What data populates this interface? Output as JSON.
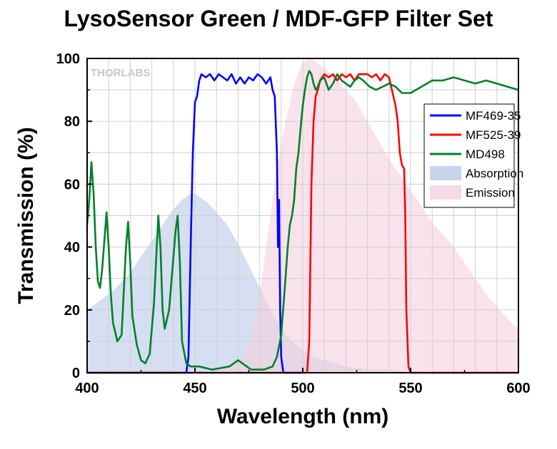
{
  "chart_data": {
    "type": "line",
    "title": "LysoSensor Green / MDF-GFP Filter Set",
    "xlabel": "Wavelength (nm)",
    "ylabel": "Transmission (%)",
    "xlim": [
      400,
      600
    ],
    "ylim": [
      0,
      100
    ],
    "x_ticks": [
      "400",
      "450",
      "500",
      "550",
      "600"
    ],
    "y_ticks": [
      "0",
      "20",
      "40",
      "60",
      "80",
      "100"
    ],
    "grid": true,
    "legend_position": "top-right",
    "watermark": "THORLABS",
    "series": [
      {
        "name": "MF469-35",
        "kind": "line",
        "color": "#0000ff",
        "points": [
          [
            400,
            0
          ],
          [
            440,
            0
          ],
          [
            446,
            0
          ],
          [
            447,
            5
          ],
          [
            448,
            40
          ],
          [
            449,
            70
          ],
          [
            450,
            86
          ],
          [
            451,
            88
          ],
          [
            452,
            93
          ],
          [
            453,
            95
          ],
          [
            455,
            94
          ],
          [
            457,
            95
          ],
          [
            459,
            93
          ],
          [
            461,
            95
          ],
          [
            463,
            94
          ],
          [
            465,
            93
          ],
          [
            467,
            95
          ],
          [
            469,
            92
          ],
          [
            471,
            94
          ],
          [
            473,
            92
          ],
          [
            475,
            94
          ],
          [
            477,
            93
          ],
          [
            479,
            95
          ],
          [
            481,
            94
          ],
          [
            483,
            92
          ],
          [
            485,
            94
          ],
          [
            486,
            90
          ],
          [
            487,
            88
          ],
          [
            488,
            70
          ],
          [
            488.5,
            40
          ],
          [
            489,
            55
          ],
          [
            489.5,
            20
          ],
          [
            490,
            5
          ],
          [
            491,
            0
          ],
          [
            500,
            0
          ]
        ]
      },
      {
        "name": "MF525-39",
        "kind": "line",
        "color": "#ff0000",
        "points": [
          [
            400,
            0
          ],
          [
            500,
            0
          ],
          [
            502,
            0
          ],
          [
            503,
            10
          ],
          [
            504,
            60
          ],
          [
            505,
            80
          ],
          [
            506,
            88
          ],
          [
            507,
            90
          ],
          [
            508,
            93
          ],
          [
            510,
            95
          ],
          [
            512,
            94
          ],
          [
            514,
            95
          ],
          [
            516,
            93
          ],
          [
            518,
            95
          ],
          [
            520,
            94
          ],
          [
            522,
            95
          ],
          [
            524,
            93
          ],
          [
            526,
            95
          ],
          [
            528,
            95
          ],
          [
            530,
            95
          ],
          [
            532,
            94
          ],
          [
            534,
            95
          ],
          [
            536,
            93
          ],
          [
            538,
            95
          ],
          [
            540,
            94
          ],
          [
            541,
            91
          ],
          [
            542,
            88
          ],
          [
            543,
            85
          ],
          [
            544,
            80
          ],
          [
            545,
            70
          ],
          [
            546,
            66
          ],
          [
            547,
            65
          ],
          [
            547.5,
            50
          ],
          [
            548,
            20
          ],
          [
            549,
            2
          ],
          [
            550,
            0
          ],
          [
            600,
            0
          ]
        ]
      },
      {
        "name": "MD498",
        "kind": "line",
        "color": "#00802b",
        "points": [
          [
            400,
            47
          ],
          [
            401,
            55
          ],
          [
            402,
            67
          ],
          [
            403,
            57
          ],
          [
            404,
            40
          ],
          [
            405,
            29
          ],
          [
            406,
            27
          ],
          [
            407,
            33
          ],
          [
            409,
            51
          ],
          [
            410,
            40
          ],
          [
            411,
            25
          ],
          [
            412,
            16
          ],
          [
            414,
            10
          ],
          [
            416,
            12
          ],
          [
            418,
            40
          ],
          [
            419,
            48
          ],
          [
            420,
            35
          ],
          [
            421,
            18
          ],
          [
            423,
            9
          ],
          [
            425,
            4
          ],
          [
            427,
            3
          ],
          [
            429,
            6
          ],
          [
            431,
            22
          ],
          [
            433,
            50
          ],
          [
            434,
            40
          ],
          [
            435,
            20
          ],
          [
            436,
            14
          ],
          [
            438,
            20
          ],
          [
            441,
            45
          ],
          [
            442,
            50
          ],
          [
            443,
            35
          ],
          [
            444,
            10
          ],
          [
            446,
            3
          ],
          [
            448,
            2
          ],
          [
            452,
            2
          ],
          [
            458,
            1
          ],
          [
            466,
            2
          ],
          [
            468,
            3
          ],
          [
            470,
            4
          ],
          [
            472,
            3
          ],
          [
            476,
            1
          ],
          [
            482,
            1
          ],
          [
            486,
            2
          ],
          [
            488,
            5
          ],
          [
            490,
            12
          ],
          [
            492,
            30
          ],
          [
            493,
            40
          ],
          [
            494,
            47
          ],
          [
            495,
            50
          ],
          [
            496,
            55
          ],
          [
            497,
            65
          ],
          [
            498,
            70
          ],
          [
            499,
            78
          ],
          [
            500,
            85
          ],
          [
            501,
            90
          ],
          [
            502,
            94
          ],
          [
            503,
            96
          ],
          [
            504,
            95
          ],
          [
            505,
            92
          ],
          [
            506,
            90
          ],
          [
            507,
            91
          ],
          [
            508,
            93
          ],
          [
            510,
            94
          ],
          [
            512,
            90
          ],
          [
            514,
            92
          ],
          [
            516,
            95
          ],
          [
            518,
            93
          ],
          [
            520,
            92
          ],
          [
            522,
            91
          ],
          [
            524,
            93
          ],
          [
            526,
            94
          ],
          [
            528,
            93
          ],
          [
            531,
            91
          ],
          [
            534,
            90
          ],
          [
            537,
            91
          ],
          [
            540,
            92
          ],
          [
            543,
            91
          ],
          [
            546,
            89
          ],
          [
            550,
            89
          ],
          [
            555,
            91
          ],
          [
            560,
            93
          ],
          [
            565,
            93
          ],
          [
            570,
            94
          ],
          [
            575,
            93
          ],
          [
            580,
            92
          ],
          [
            585,
            93
          ],
          [
            590,
            92
          ],
          [
            595,
            91
          ],
          [
            600,
            90
          ]
        ]
      },
      {
        "name": "Absorption",
        "kind": "area",
        "color": "#b9c9e8",
        "points": [
          [
            400,
            20
          ],
          [
            404,
            22
          ],
          [
            408,
            24
          ],
          [
            412,
            26
          ],
          [
            416,
            29
          ],
          [
            420,
            32
          ],
          [
            424,
            36
          ],
          [
            428,
            40
          ],
          [
            432,
            44
          ],
          [
            436,
            48
          ],
          [
            440,
            52
          ],
          [
            444,
            55
          ],
          [
            448,
            57
          ],
          [
            450,
            57
          ],
          [
            452,
            56
          ],
          [
            456,
            54
          ],
          [
            460,
            51
          ],
          [
            465,
            47
          ],
          [
            470,
            41
          ],
          [
            475,
            34
          ],
          [
            480,
            27
          ],
          [
            485,
            20
          ],
          [
            490,
            14
          ],
          [
            495,
            10
          ],
          [
            500,
            7
          ],
          [
            505,
            5
          ],
          [
            510,
            4
          ],
          [
            515,
            3
          ],
          [
            520,
            2
          ],
          [
            530,
            1
          ],
          [
            540,
            1
          ],
          [
            550,
            0.5
          ],
          [
            560,
            0.2
          ],
          [
            570,
            0
          ],
          [
            600,
            0
          ]
        ]
      },
      {
        "name": "Emission",
        "kind": "area",
        "color": "#f3d0e0",
        "points": [
          [
            460,
            0
          ],
          [
            470,
            3
          ],
          [
            476,
            10
          ],
          [
            480,
            25
          ],
          [
            484,
            45
          ],
          [
            488,
            65
          ],
          [
            492,
            80
          ],
          [
            496,
            92
          ],
          [
            500,
            99
          ],
          [
            503,
            100
          ],
          [
            506,
            99
          ],
          [
            510,
            97
          ],
          [
            515,
            94
          ],
          [
            520,
            90
          ],
          [
            525,
            86
          ],
          [
            530,
            80
          ],
          [
            535,
            74
          ],
          [
            540,
            68
          ],
          [
            545,
            63
          ],
          [
            550,
            58
          ],
          [
            555,
            53
          ],
          [
            560,
            48
          ],
          [
            565,
            44
          ],
          [
            570,
            40
          ],
          [
            575,
            35
          ],
          [
            580,
            30
          ],
          [
            585,
            25
          ],
          [
            590,
            21
          ],
          [
            595,
            17
          ],
          [
            600,
            14
          ]
        ]
      }
    ]
  }
}
